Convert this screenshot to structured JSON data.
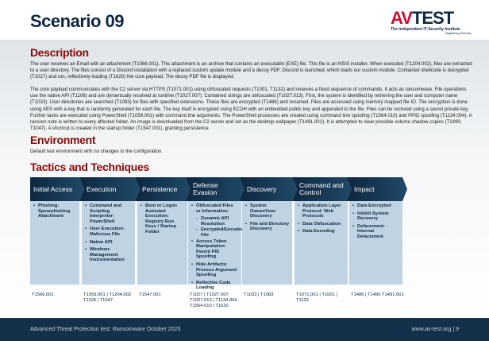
{
  "title": "Scenario 09",
  "logo": {
    "text": "AV-TEST",
    "tagline": "The Independent IT-Security Institute",
    "location": "Magdeburg Germany"
  },
  "description": {
    "heading": "Description",
    "p1": "The user receives an Email with an attachment (T1566.001). This attachment is an archive that contains an executable (EXE) file. This file is an NSIS installer. When executed (T1204.002), files are extracted to a user directory. The files consist of a Discord installation with a replaced custom update module and a decoy PDF. Discord is launched, which loads our custom module. Contained shellcode is decrypted (T1027) and run, reflectively loading (T1620) the core payload. The decoy PDF file is displayed.",
    "p2": "The core payload communicates with the C2 server via HTTPS (T1071.001) using obfuscated requests (T1001, T1132) and receives a fixed sequence of commands. It acts as ransomware. File operations use the native API (T1106) and are dynamically resolved at runtime (T1027.007). Contained strings are obfuscated (T1027.013). First, the system is identified by retrieving the user and computer name (T1033). User directories are searched (T1083) for files with specified extensions. These files are encrypted (T1486) and renamed. Files are accessed using memory mapped file IO. The encryption is done using AES with a key that is randomly generated for each file. The key itself is encrypted using ECDH with an embedded public key and appended to the file. Files can be restored using a secret private key. Further tasks are executed using PowerShell (T1059.001) with command line arguments. The PowerShell processes are created using command line spoofing (T1564.010) and PPID spoofing (T1134.004).  A ransom note is written to every affected folder. An image is downloaded from the C2 server and set as the desktop wallpaper (T1491.001). It is attempted to clear possible volume shadow copies (T1490, T1047). A shortcut is created in the startup folder (T1547.001), granting persistence."
  },
  "environment": {
    "heading": "Environment",
    "text": "Default test environment with no changes to the configuration."
  },
  "tactics": {
    "heading": "Tactics and Techniques",
    "columns": [
      {
        "name": "Initial Access",
        "items": [
          {
            "t": "Phishing: Spearphishing Attachment"
          }
        ],
        "ids": "T1566.001"
      },
      {
        "name": "Execution",
        "items": [
          {
            "t": "Command and Scripting Interpreter: PowerShell"
          },
          {
            "t": "User Execution: Malicious File"
          },
          {
            "t": "Native API"
          },
          {
            "t": "Windows Management Instrumentation"
          }
        ],
        "ids": "T1059.001 | T1204.002 T1106 | T1047"
      },
      {
        "name": "Persistence",
        "items": [
          {
            "t": "Boot or Logon Autostart Execution: Registry Run Keys / Startup Folder"
          }
        ],
        "ids": "T1547.001"
      },
      {
        "name": "Defense Evasion",
        "items": [
          {
            "t": "Obfuscated Files or Information:"
          },
          {
            "t": "Dynamic API Resolution",
            "sub": true
          },
          {
            "t": "Encrypted/Encoded File",
            "sub": true
          },
          {
            "t": "Access Token Manipulation: Parent PID Spoofing"
          },
          {
            "t": "Hide Artifacts: Process Argument Spoofing"
          },
          {
            "t": "Reflective Code Loading"
          }
        ],
        "ids": "T1027 | T1027.007 T1027.013 | T1134.004 T1564.010 | T1620"
      },
      {
        "name": "Discovery",
        "items": [
          {
            "t": "System Owner/User Discovery"
          },
          {
            "t": "File and Directory Discovery"
          }
        ],
        "ids": "T1033 | T1083"
      },
      {
        "name": "Command and Control",
        "items": [
          {
            "t": "Application Layer Protocol: Web Protocols"
          },
          {
            "t": "Data Obfuscation"
          },
          {
            "t": "Data Encoding"
          }
        ],
        "ids": "T1071.001 | T1001 | T1132"
      },
      {
        "name": "Impact",
        "items": [
          {
            "t": "Data Encrypted"
          },
          {
            "t": "Inhibit System Recovery"
          },
          {
            "t": "Defacement: Internal Defacement"
          }
        ],
        "ids": "T1486 | T1490 T1491.001"
      }
    ]
  },
  "footer": {
    "left": "Advanced Threat Protection test: Ransomware October 2025",
    "right": "www.av-test.org | 9"
  }
}
